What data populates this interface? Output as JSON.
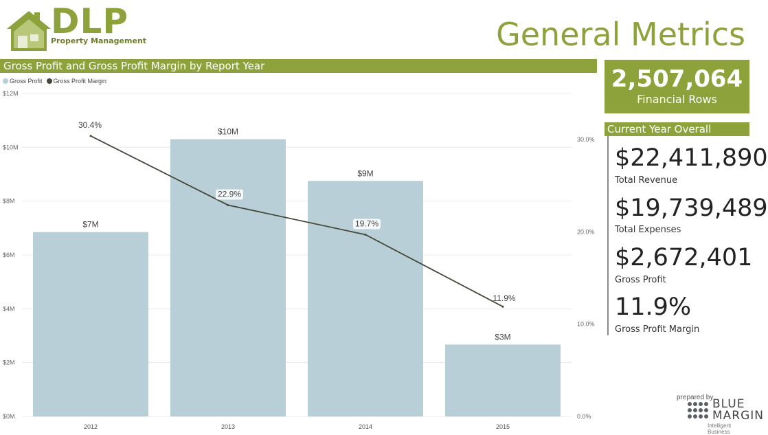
{
  "brand": {
    "logo_text": "DLP",
    "logo_subtitle": "Property Management",
    "logo_color": "#8ea23c"
  },
  "page_title": "General Metrics",
  "chart_header": "Gross Profit and Gross Profit Margin by Report Year",
  "kpi": {
    "value": "2,507,064",
    "label": "Financial Rows"
  },
  "current_year": {
    "title": "Current Year Overall",
    "metrics": [
      {
        "value": "$22,411,890",
        "label": "Total Revenue"
      },
      {
        "value": "$19,739,489",
        "label": "Total Expenses"
      },
      {
        "value": "$2,672,401",
        "label": "Gross Profit"
      },
      {
        "value": "11.9%",
        "label": "Gross Profit Margin"
      }
    ]
  },
  "footer": {
    "prepared_by": "prepared by",
    "company": "BLUE MARGIN",
    "tagline": "Intelligent Business"
  },
  "chart_data": {
    "type": "bar",
    "categories": [
      "2012",
      "2013",
      "2014",
      "2015"
    ],
    "series": [
      {
        "name": "Gross Profit",
        "type": "bar",
        "axis": "left",
        "values": [
          6.85,
          10.3,
          8.75,
          2.67
        ],
        "labels": [
          "$7M",
          "$10M",
          "$9M",
          "$3M"
        ],
        "color": "#b8cfd7"
      },
      {
        "name": "Gross Profit Margin",
        "type": "line",
        "axis": "right",
        "values": [
          30.4,
          22.9,
          19.7,
          11.9
        ],
        "labels": [
          "30.4%",
          "22.9%",
          "19.7%",
          "11.9%"
        ],
        "color": "#44473a"
      }
    ],
    "y_left": {
      "ticks": [
        0,
        2,
        4,
        6,
        8,
        10,
        12
      ],
      "tick_labels": [
        "$0M",
        "$2M",
        "$4M",
        "$6M",
        "$8M",
        "$10M",
        "$12M"
      ],
      "ylim": [
        0,
        12
      ]
    },
    "y_right": {
      "ticks": [
        0,
        10,
        20,
        30
      ],
      "tick_labels": [
        "0.0%",
        "10.0%",
        "20.0%",
        "30.0%"
      ],
      "ylim": [
        0,
        35
      ]
    },
    "legend_position": "top-left",
    "grid": true
  }
}
